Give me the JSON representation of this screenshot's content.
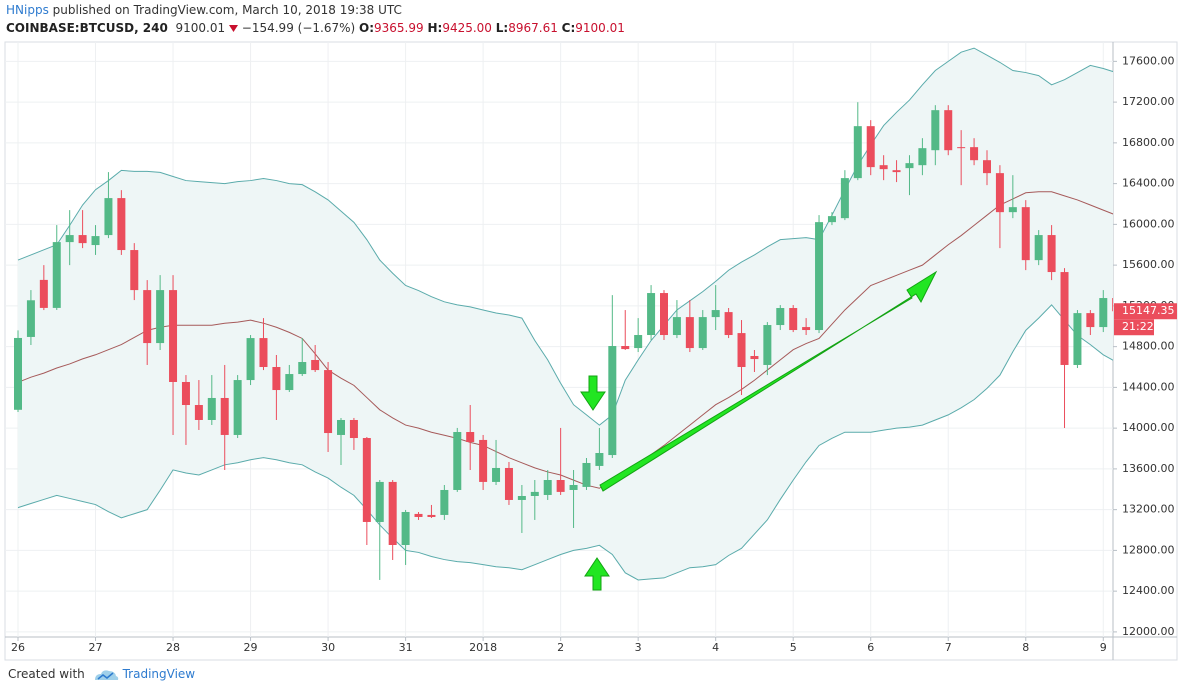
{
  "header": {
    "author": "HNipps",
    "published": "published on TradingView.com, March 10, 2018 19:38 UTC",
    "symbol": "COINBASE:BTCUSD, 240",
    "last": "9100.01",
    "change": "−154.99 (−1.67%)",
    "open_label": "O:",
    "open": "9365.99",
    "high_label": "H:",
    "high": "9425.00",
    "low_label": "L:",
    "low": "8967.61",
    "close_label": "C:",
    "close": "9100.01"
  },
  "footer": {
    "created": "Created with",
    "brand": "TradingView"
  },
  "chart_data": {
    "type": "candlestick",
    "categories": [
      "26",
      null,
      null,
      null,
      null,
      null,
      "27",
      null,
      null,
      null,
      null,
      null,
      "28",
      null,
      null,
      null,
      null,
      null,
      "29",
      null,
      null,
      null,
      null,
      null,
      "30",
      null,
      null,
      null,
      null,
      null,
      "31",
      null,
      null,
      null,
      null,
      null,
      "2018",
      null,
      null,
      null,
      null,
      null,
      "2",
      null,
      null,
      null,
      null,
      null,
      "3",
      null,
      null,
      null,
      null,
      null,
      "4",
      null,
      null,
      null,
      null,
      null,
      "5",
      null,
      null,
      null,
      null,
      null,
      "6",
      null,
      null,
      null,
      null,
      null,
      "7",
      null,
      null,
      null,
      null,
      null,
      "8",
      null,
      null,
      null,
      null,
      null,
      "9",
      null
    ],
    "open": [
      14180,
      14895,
      15455,
      15180,
      15826,
      15895,
      15797,
      15895,
      16258,
      15748,
      15355,
      14835,
      15355,
      14453,
      14227,
      14080,
      14296,
      13933,
      14472,
      14884,
      14600,
      14374,
      14531,
      14669,
      14570,
      13933,
      14080,
      13903,
      13079,
      13472,
      12853,
      13158,
      13148,
      13148,
      13393,
      13962,
      13884,
      13472,
      13609,
      13295,
      13334,
      13344,
      13491,
      13393,
      13423,
      13629,
      13736,
      14806,
      14786,
      14914,
      15326,
      14914,
      15090,
      14786,
      15090,
      15139,
      14933,
      14708,
      14620,
      15012,
      15179,
      14992,
      14963,
      16022,
      16061,
      16454,
      16964,
      16581,
      16532,
      16552,
      16581,
      16728,
      17121,
      16758,
      16758,
      16630,
      16503,
      16120,
      16169,
      15649,
      15895,
      15532,
      14620,
      15129,
      14992,
      15277
    ],
    "high": [
      14960,
      15355,
      15600,
      15993,
      16140,
      16140,
      15993,
      16513,
      16336,
      15816,
      15453,
      15502,
      15502,
      14521,
      14472,
      14521,
      14620,
      14521,
      14914,
      15080,
      14718,
      14620,
      14884,
      14816,
      14649,
      14100,
      14100,
      13913,
      13491,
      13491,
      13197,
      13177,
      13246,
      13442,
      14002,
      14227,
      13933,
      13884,
      13668,
      13442,
      13491,
      13589,
      14002,
      13589,
      13707,
      14002,
      15306,
      15159,
      15080,
      15404,
      15355,
      15257,
      15257,
      15159,
      15404,
      15179,
      15061,
      14767,
      15041,
      15208,
      15208,
      15080,
      16091,
      16120,
      16532,
      17199,
      17023,
      16679,
      16630,
      16679,
      16846,
      17170,
      17170,
      16925,
      16846,
      16728,
      16581,
      16483,
      16238,
      15944,
      15993,
      15571,
      15159,
      15159,
      15355,
      15375
    ],
    "low": [
      14158,
      14816,
      15159,
      15160,
      15600,
      15767,
      15700,
      15865,
      15700,
      15257,
      14620,
      14767,
      13933,
      13835,
      13982,
      14031,
      13589,
      13903,
      14423,
      14570,
      14080,
      14355,
      14512,
      14551,
      13766,
      13638,
      13786,
      12853,
      12510,
      12706,
      12657,
      13099,
      13118,
      13099,
      13374,
      13589,
      13393,
      13442,
      13246,
      12971,
      13099,
      13295,
      13344,
      13020,
      13393,
      13589,
      13707,
      14767,
      14747,
      14865,
      14865,
      14884,
      14747,
      14767,
      14963,
      14884,
      14325,
      14551,
      14521,
      14963,
      14943,
      14914,
      14933,
      15993,
      16042,
      16434,
      16483,
      16434,
      16415,
      16287,
      16483,
      16581,
      16679,
      16385,
      16581,
      16385,
      15767,
      16061,
      15551,
      15600,
      15453,
      14001,
      14590,
      14914,
      14943,
      14816
    ],
    "close": [
      14885,
      15255,
      15180,
      15826,
      15895,
      15816,
      15885,
      16258,
      15748,
      15355,
      14835,
      15355,
      14453,
      14227,
      14080,
      14296,
      13933,
      14472,
      14884,
      14600,
      14374,
      14531,
      14649,
      14570,
      13952,
      14080,
      13903,
      13079,
      13472,
      12853,
      13177,
      13128,
      13128,
      13393,
      13962,
      13864,
      13472,
      13609,
      13295,
      13334,
      13374,
      13491,
      13374,
      13442,
      13658,
      13756,
      14806,
      14776,
      14914,
      15326,
      14914,
      15090,
      14786,
      15090,
      15159,
      14914,
      14600,
      14678,
      15012,
      15179,
      14963,
      14963,
      16022,
      16081,
      16454,
      16964,
      16562,
      16542,
      16513,
      16601,
      16748,
      17121,
      16728,
      16748,
      16630,
      16503,
      16120,
      16169,
      15649,
      15895,
      15532,
      14620,
      15129,
      14992,
      15277,
      15147.35
    ],
    "up_color": "#53b987",
    "down_color": "#eb4d5c",
    "bands": [
      {
        "color": "#5aabab",
        "values": [
          15650,
          15700,
          15750,
          15800,
          15990,
          16190,
          16340,
          16430,
          16530,
          16520,
          16520,
          16510,
          16470,
          16430,
          16420,
          16410,
          16400,
          16420,
          16430,
          16450,
          16430,
          16400,
          16390,
          16320,
          16240,
          16130,
          16020,
          15850,
          15650,
          15520,
          15400,
          15350,
          15290,
          15240,
          15210,
          15190,
          15160,
          15130,
          15110,
          15080,
          14860,
          14670,
          14440,
          14230,
          14130,
          14030,
          14130,
          14470,
          14670,
          14860,
          15010,
          15160,
          15250,
          15340,
          15440,
          15550,
          15630,
          15700,
          15780,
          15850,
          15860,
          15870,
          15850,
          16090,
          16340,
          16580,
          16780,
          16970,
          17100,
          17220,
          17370,
          17510,
          17600,
          17690,
          17730,
          17660,
          17590,
          17510,
          17490,
          17460,
          17370,
          17420,
          17490,
          17560,
          17530,
          17490
        ]
      },
      {
        "color": "#a65a5a",
        "values": [
          14450,
          14500,
          14540,
          14590,
          14630,
          14680,
          14720,
          14770,
          14820,
          14890,
          14960,
          14990,
          15010,
          15010,
          15010,
          15010,
          15030,
          15040,
          15060,
          15030,
          14990,
          14940,
          14880,
          14730,
          14570,
          14490,
          14420,
          14300,
          14180,
          14100,
          14030,
          14000,
          13960,
          13930,
          13900,
          13860,
          13830,
          13770,
          13710,
          13660,
          13610,
          13570,
          13540,
          13490,
          13440,
          13410,
          13490,
          13570,
          13640,
          13740,
          13830,
          13930,
          14030,
          14130,
          14230,
          14300,
          14380,
          14470,
          14570,
          14670,
          14770,
          14830,
          14880,
          15020,
          15160,
          15280,
          15400,
          15450,
          15500,
          15550,
          15600,
          15700,
          15800,
          15890,
          15990,
          16090,
          16190,
          16250,
          16310,
          16320,
          16320,
          16280,
          16240,
          16190,
          16140,
          16090
        ]
      },
      {
        "color": "#5aabab",
        "values": [
          13220,
          13260,
          13300,
          13340,
          13310,
          13280,
          13250,
          13180,
          13120,
          13160,
          13200,
          13390,
          13590,
          13560,
          13540,
          13590,
          13640,
          13660,
          13690,
          13710,
          13690,
          13660,
          13640,
          13570,
          13510,
          13420,
          13340,
          13200,
          13050,
          12920,
          12800,
          12780,
          12740,
          12710,
          12690,
          12680,
          12660,
          12640,
          12630,
          12610,
          12660,
          12710,
          12760,
          12800,
          12820,
          12850,
          12760,
          12580,
          12510,
          12520,
          12530,
          12580,
          12630,
          12640,
          12660,
          12750,
          12820,
          12960,
          13100,
          13300,
          13490,
          13670,
          13830,
          13900,
          13960,
          13960,
          13960,
          13980,
          14000,
          14010,
          14030,
          14080,
          14130,
          14200,
          14280,
          14390,
          14520,
          14750,
          14960,
          15080,
          15210,
          15060,
          14910,
          14820,
          14720,
          14650
        ]
      }
    ],
    "band_fill": "#eef6f6",
    "countdown": "21:22",
    "ylim": [
      11950,
      17790
    ],
    "yticks": [
      {
        "value": 12000,
        "label": "12000.00"
      },
      {
        "value": 12400,
        "label": "12400.00"
      },
      {
        "value": 12800,
        "label": "12800.00"
      },
      {
        "value": 13200,
        "label": "13200.00"
      },
      {
        "value": 13600,
        "label": "13600.00"
      },
      {
        "value": 14000,
        "label": "14000.00"
      },
      {
        "value": 14400,
        "label": "14400.00"
      },
      {
        "value": 14800,
        "label": "14800.00"
      },
      {
        "value": 15200,
        "label": "15200.00"
      },
      {
        "value": 15600,
        "label": "15600.00"
      },
      {
        "value": 16000,
        "label": "16000.00"
      },
      {
        "value": 16400,
        "label": "16400.00"
      },
      {
        "value": 16800,
        "label": "16800.00"
      },
      {
        "value": 17200,
        "label": "17200.00"
      },
      {
        "value": 17600,
        "label": "17600.00"
      }
    ],
    "grid": true
  }
}
